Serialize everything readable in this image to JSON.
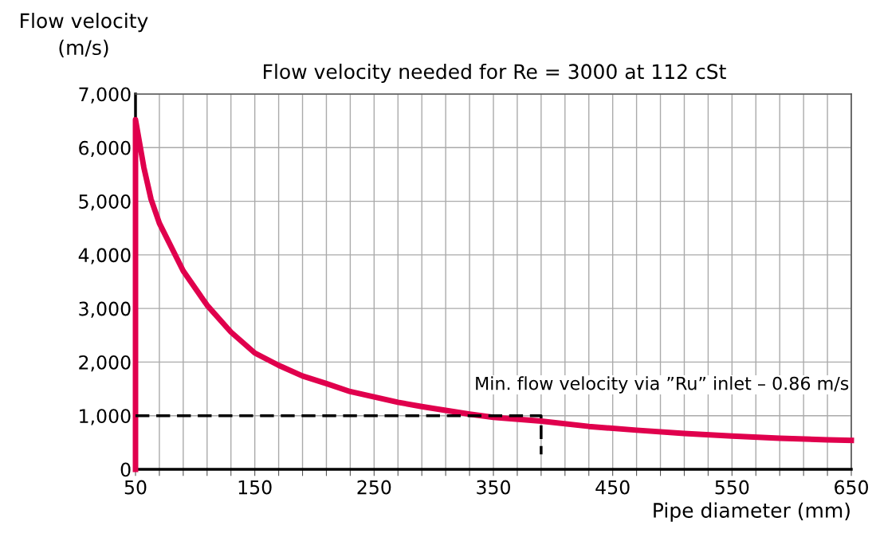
{
  "chart_data": {
    "type": "line",
    "title": "Flow velocity needed for Re = 3000 at 112 cSt",
    "xlabel": "Pipe diameter (mm)",
    "ylabel": "Flow velocity\n(m/s)",
    "annotations": [
      "Min. flow velocity via ”Ru” inlet – 0.86 m/s"
    ],
    "series": [
      {
        "color": "#e0004d",
        "line_style": "solid",
        "x": [
          50,
          50,
          57,
          63,
          70,
          90,
          110,
          130,
          150,
          170,
          190,
          210,
          230,
          250,
          270,
          290,
          310,
          330,
          350,
          390,
          430,
          470,
          510,
          550,
          590,
          630,
          650
        ],
        "values": [
          0,
          6520,
          5630,
          5040,
          4590,
          3700,
          3060,
          2560,
          2170,
          1940,
          1740,
          1600,
          1450,
          1350,
          1250,
          1170,
          1100,
          1030,
          970,
          900,
          800,
          730,
          670,
          620,
          580,
          550,
          540
        ]
      },
      {
        "color": "#000000",
        "line_style": "dashed",
        "x": [
          50,
          390,
          390
        ],
        "values": [
          1000,
          1000,
          280
        ]
      }
    ],
    "xlim": [
      50,
      650
    ],
    "ylim": [
      0,
      7000
    ],
    "xticks": [
      50,
      {
        "value": 70,
        "label": null
      },
      {
        "value": 90,
        "label": null
      },
      {
        "value": 110,
        "label": null
      },
      {
        "value": 130,
        "label": null
      },
      150,
      {
        "value": 170,
        "label": null
      },
      {
        "value": 190,
        "label": null
      },
      {
        "value": 210,
        "label": null
      },
      {
        "value": 230,
        "label": null
      },
      250,
      {
        "value": 270,
        "label": null
      },
      {
        "value": 290,
        "label": null
      },
      {
        "value": 310,
        "label": null
      },
      {
        "value": 330,
        "label": null
      },
      350,
      {
        "value": 370,
        "label": null
      },
      {
        "value": 390,
        "label": null
      },
      {
        "value": 410,
        "label": null
      },
      {
        "value": 430,
        "label": null
      },
      450,
      {
        "value": 470,
        "label": null
      },
      {
        "value": 490,
        "label": null
      },
      {
        "value": 510,
        "label": null
      },
      {
        "value": 530,
        "label": null
      },
      550,
      {
        "value": 570,
        "label": null
      },
      {
        "value": 590,
        "label": null
      },
      {
        "value": 610,
        "label": null
      },
      {
        "value": 630,
        "label": null
      },
      650
    ],
    "yticks": [
      0,
      {
        "value": 1000,
        "label": "1,000"
      },
      {
        "value": 2000,
        "label": "2,000"
      },
      {
        "value": 3000,
        "label": "3,000"
      },
      {
        "value": 4000,
        "label": "4,000"
      },
      {
        "value": 5000,
        "label": "5,000"
      },
      {
        "value": 6000,
        "label": "6,000"
      },
      {
        "value": 7000,
        "label": "7,000"
      }
    ],
    "grid": true,
    "marker": "none"
  }
}
